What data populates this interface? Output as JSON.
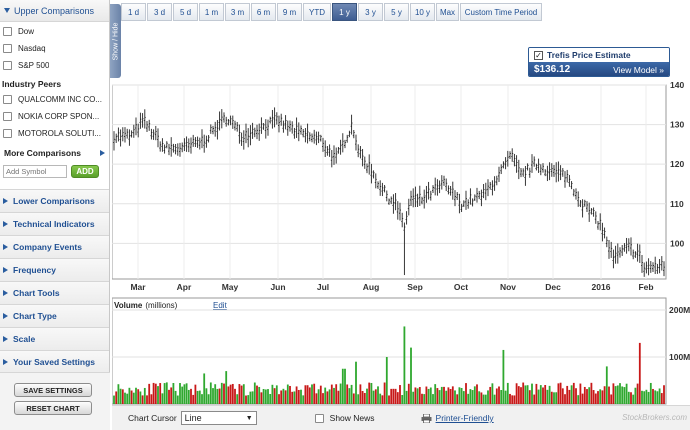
{
  "sidebar": {
    "upper_comparisons": "Upper Comparisons",
    "indices": [
      {
        "label": "Dow",
        "checked": false
      },
      {
        "label": "Nasdaq",
        "checked": false
      },
      {
        "label": "S&P 500",
        "checked": false
      }
    ],
    "industry_peers_label": "Industry Peers",
    "peers": [
      {
        "label": "QUALCOMM INC CO...",
        "checked": false
      },
      {
        "label": "NOKIA CORP SPON...",
        "checked": false
      },
      {
        "label": "MOTOROLA SOLUTI...",
        "checked": false
      }
    ],
    "more_comparisons": "More Comparisons",
    "add_symbol_placeholder": "Add Symbol",
    "add_button": "ADD",
    "sections": [
      "Lower Comparisons",
      "Technical Indicators",
      "Company Events",
      "Frequency",
      "Chart Tools",
      "Chart Type",
      "Scale",
      "Your Saved Settings"
    ],
    "save_settings": "SAVE SETTINGS",
    "reset_chart": "RESET CHART"
  },
  "show_hide_label": "Show / Hide",
  "time_buttons": [
    {
      "label": "1 d"
    },
    {
      "label": "3 d"
    },
    {
      "label": "5 d"
    },
    {
      "label": "1 m"
    },
    {
      "label": "3 m"
    },
    {
      "label": "6 m"
    },
    {
      "label": "9 m"
    },
    {
      "label": "YTD"
    },
    {
      "label": "1 y"
    },
    {
      "label": "3 y"
    },
    {
      "label": "5 y"
    },
    {
      "label": "10 y"
    },
    {
      "label": "Max"
    },
    {
      "label": "Custom Time Period"
    }
  ],
  "active_range": "1 y",
  "trefis": {
    "title": "Trefis Price Estimate",
    "checked": true,
    "price": "$136.12",
    "view_model": "View Model »"
  },
  "chart_data": [
    {
      "type": "ohlc",
      "x_ticks": [
        "Mar",
        "Apr",
        "May",
        "Jun",
        "Jul",
        "Aug",
        "Sep",
        "Oct",
        "Nov",
        "Dec",
        "2016",
        "Feb"
      ],
      "y_ticks": [
        100,
        110,
        120,
        130,
        140
      ],
      "ylim": [
        91,
        140
      ],
      "grid": true,
      "anchors": [
        {
          "x": "Mar 1",
          "y": 127
        },
        {
          "x": "Mar 8",
          "y": 131
        },
        {
          "x": "Mar 20",
          "y": 124
        },
        {
          "x": "Apr 1",
          "y": 124
        },
        {
          "x": "Apr 15",
          "y": 126
        },
        {
          "x": "May 1",
          "y": 132
        },
        {
          "x": "May 10",
          "y": 127
        },
        {
          "x": "May 20",
          "y": 129
        },
        {
          "x": "Jun 1",
          "y": 131
        },
        {
          "x": "Jun 15",
          "y": 128
        },
        {
          "x": "Jul 1",
          "y": 126
        },
        {
          "x": "Jul 10",
          "y": 121
        },
        {
          "x": "Jul 20",
          "y": 130
        },
        {
          "x": "Jul 25",
          "y": 122
        },
        {
          "x": "Aug 1",
          "y": 119
        },
        {
          "x": "Aug 10",
          "y": 113
        },
        {
          "x": "Aug 18",
          "y": 110
        },
        {
          "x": "Aug 24",
          "y": 104
        },
        {
          "x": "Aug 28",
          "y": 111
        },
        {
          "x": "Sep 5",
          "y": 111
        },
        {
          "x": "Sep 20",
          "y": 115
        },
        {
          "x": "Oct 1",
          "y": 110
        },
        {
          "x": "Oct 15",
          "y": 112
        },
        {
          "x": "Oct 25",
          "y": 117
        },
        {
          "x": "Nov 3",
          "y": 122
        },
        {
          "x": "Nov 10",
          "y": 117
        },
        {
          "x": "Nov 20",
          "y": 120
        },
        {
          "x": "Dec 1",
          "y": 118
        },
        {
          "x": "Dec 10",
          "y": 117
        },
        {
          "x": "Dec 20",
          "y": 110
        },
        {
          "x": "Jan 1",
          "y": 105
        },
        {
          "x": "Jan 10",
          "y": 96
        },
        {
          "x": "Jan 20",
          "y": 99
        },
        {
          "x": "Jan 28",
          "y": 97
        },
        {
          "x": "Feb 5",
          "y": 97
        },
        {
          "x": "Feb 12",
          "y": 94
        }
      ]
    },
    {
      "type": "bar",
      "title": "Volume",
      "unit": "(millions)",
      "edit_label": "Edit",
      "y_ticks": [
        "100M",
        "200M"
      ],
      "ylim": [
        0,
        200
      ],
      "colors": {
        "up": "#2fa82f",
        "down": "#c81818"
      },
      "spikes": [
        {
          "x": "Feb 10",
          "value": 70
        },
        {
          "x": "Apr 15",
          "value": 65
        },
        {
          "x": "May 1",
          "value": 70
        },
        {
          "x": "Jul 15",
          "value": 75
        },
        {
          "x": "Jul 22",
          "value": 90
        },
        {
          "x": "Aug 12",
          "value": 100
        },
        {
          "x": "Aug 24",
          "value": 165
        },
        {
          "x": "Aug 28",
          "value": 120
        },
        {
          "x": "Oct 28",
          "value": 115
        },
        {
          "x": "Jan 28",
          "value": 130
        },
        {
          "x": "Jan 5",
          "value": 80
        }
      ]
    }
  ],
  "bottom": {
    "cursor_label": "Chart Cursor",
    "cursor_value": "Line",
    "show_news": "Show News",
    "printer_friendly": "Printer-Friendly",
    "watermark": "StockBrokers.com"
  }
}
